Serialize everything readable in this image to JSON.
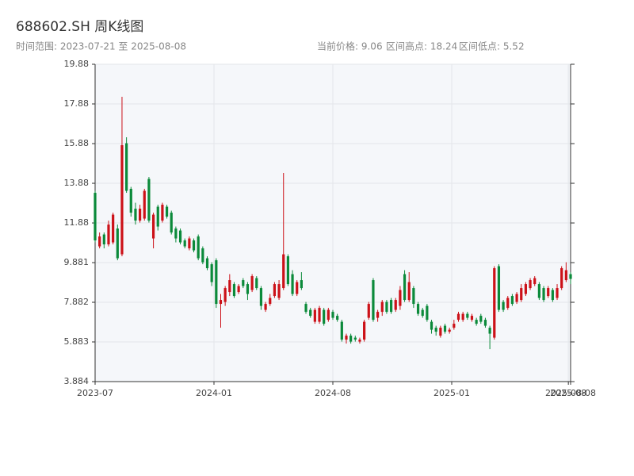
{
  "chart_data": {
    "type": "candlestick",
    "title": "688602.SH 周K线图",
    "subtitle": "时间范围: 2023-07-21 至 2025-08-08",
    "stats": [
      "当前价格: 9.06",
      "区间高点: 18.24",
      "区间低点: 5.52"
    ],
    "up_color": "#cc1118",
    "down_color": "#0b8a3a",
    "grid": true,
    "xlim": [
      0,
      106
    ],
    "xticks": [
      {
        "value": 0,
        "label": "2023-07"
      },
      {
        "value": 26.5,
        "label": "2024-01"
      },
      {
        "value": 53,
        "label": "2024-08"
      },
      {
        "value": 79.5,
        "label": "2025-01"
      },
      {
        "value": 105.5,
        "label": "2025-08"
      },
      {
        "value": 106,
        "label": "2025-08-08"
      }
    ],
    "ylim": [
      3.884,
      19.88
    ],
    "yticks": [
      3.884,
      5.883,
      7.882,
      9.881,
      11.88,
      13.88,
      15.88,
      17.88,
      19.88
    ],
    "open": [
      13.4,
      10.7,
      11.3,
      10.8,
      10.9,
      11.6,
      10.3,
      15.9,
      13.6,
      12.6,
      12.0,
      12.1,
      14.1,
      11.1,
      12.7,
      12.0,
      12.7,
      12.4,
      11.6,
      11.5,
      11.0,
      10.6,
      11.0,
      11.2,
      10.6,
      10.1,
      9.8,
      10.0,
      7.8,
      7.9,
      8.4,
      8.8,
      8.4,
      9.0,
      8.8,
      8.5,
      9.1,
      8.6,
      7.5,
      7.8,
      8.2,
      8.1,
      8.6,
      10.2,
      9.3,
      8.3,
      9.0,
      7.8,
      7.5,
      6.9,
      6.9,
      7.5,
      7.0,
      7.4,
      7.2,
      6.9,
      6.0,
      6.2,
      6.1,
      5.9,
      6.0,
      7.1,
      9.0,
      7.1,
      7.4,
      7.9,
      8.0,
      7.5,
      7.7,
      9.3,
      8.0,
      8.6,
      7.8,
      7.5,
      7.7,
      6.9,
      6.6,
      6.2,
      6.7,
      6.4,
      6.6,
      7.0,
      7.0,
      7.3,
      7.0,
      7.0,
      7.2,
      7.0,
      6.6,
      6.1,
      9.7,
      7.9,
      7.6,
      8.2,
      7.9,
      8.0,
      8.3,
      8.6,
      8.8,
      8.8,
      8.6,
      8.2,
      8.5,
      8.1,
      8.6,
      9.0,
      9.3
    ],
    "high": [
      13.5,
      11.4,
      11.4,
      12.0,
      12.4,
      11.8,
      18.24,
      16.2,
      13.7,
      12.9,
      12.8,
      13.6,
      14.2,
      12.4,
      12.8,
      12.9,
      12.8,
      12.5,
      11.7,
      11.6,
      11.1,
      11.2,
      11.1,
      11.3,
      10.7,
      10.2,
      9.9,
      10.1,
      8.3,
      8.7,
      9.3,
      8.9,
      8.8,
      9.1,
      8.9,
      9.3,
      9.2,
      8.7,
      7.9,
      8.3,
      8.9,
      9.0,
      14.4,
      10.3,
      9.5,
      9.0,
      9.4,
      7.9,
      7.6,
      7.6,
      7.7,
      7.6,
      7.6,
      7.5,
      7.3,
      7.0,
      6.3,
      6.3,
      6.2,
      6.1,
      7.0,
      7.9,
      9.1,
      7.5,
      8.0,
      8.0,
      8.1,
      8.1,
      8.7,
      9.5,
      9.4,
      8.7,
      7.9,
      7.6,
      7.8,
      7.0,
      6.7,
      6.7,
      6.8,
      6.6,
      7.0,
      7.4,
      7.4,
      7.4,
      7.3,
      7.1,
      7.3,
      7.1,
      6.7,
      9.7,
      9.8,
      8.0,
      8.2,
      8.3,
      8.4,
      8.8,
      8.9,
      9.1,
      9.2,
      8.9,
      8.7,
      8.7,
      8.6,
      8.8,
      9.7,
      9.9,
      9.4
    ],
    "low": [
      10.9,
      10.6,
      10.6,
      10.7,
      10.8,
      10.0,
      10.2,
      13.4,
      12.2,
      11.8,
      11.9,
      12.0,
      11.9,
      10.6,
      11.5,
      11.9,
      12.1,
      11.3,
      10.9,
      10.8,
      10.6,
      10.5,
      10.4,
      10.0,
      9.8,
      9.5,
      8.7,
      7.6,
      6.6,
      7.7,
      8.2,
      8.1,
      8.3,
      8.6,
      8.0,
      8.4,
      8.5,
      7.5,
      7.4,
      7.7,
      8.1,
      8.0,
      8.5,
      8.7,
      8.2,
      8.2,
      8.5,
      7.3,
      7.1,
      6.8,
      6.8,
      6.7,
      6.9,
      7.0,
      6.9,
      5.9,
      5.8,
      5.8,
      5.9,
      5.8,
      5.9,
      7.0,
      6.9,
      6.9,
      7.2,
      7.3,
      7.3,
      7.4,
      7.5,
      7.9,
      7.9,
      7.6,
      7.2,
      7.1,
      6.9,
      6.3,
      6.2,
      6.1,
      6.3,
      6.3,
      6.5,
      6.9,
      6.9,
      7.0,
      6.9,
      6.7,
      6.8,
      6.6,
      5.52,
      6.0,
      7.4,
      7.4,
      7.5,
      7.7,
      7.8,
      7.9,
      8.2,
      8.5,
      8.7,
      8.0,
      7.9,
      8.1,
      7.9,
      8.0,
      8.5,
      8.9,
      8.8
    ],
    "close": [
      11.0,
      11.2,
      10.8,
      11.8,
      12.3,
      10.1,
      15.8,
      13.5,
      12.4,
      12.0,
      12.6,
      13.5,
      12.0,
      12.3,
      11.7,
      12.8,
      12.2,
      11.4,
      11.1,
      10.9,
      10.7,
      11.1,
      10.5,
      10.1,
      9.9,
      9.6,
      8.9,
      7.8,
      8.0,
      8.6,
      9.0,
      8.2,
      8.7,
      8.7,
      8.3,
      9.2,
      8.6,
      7.7,
      7.8,
      8.1,
      8.8,
      8.8,
      10.3,
      8.8,
      8.3,
      8.9,
      8.6,
      7.4,
      7.2,
      7.5,
      7.6,
      6.8,
      7.5,
      7.1,
      7.0,
      6.0,
      6.2,
      5.9,
      6.0,
      6.0,
      6.9,
      7.8,
      7.0,
      7.4,
      7.9,
      7.4,
      7.4,
      8.0,
      8.5,
      8.0,
      8.9,
      7.8,
      7.3,
      7.2,
      7.0,
      6.5,
      6.4,
      6.6,
      6.4,
      6.5,
      6.8,
      7.3,
      7.3,
      7.1,
      7.2,
      6.8,
      6.9,
      6.7,
      6.3,
      9.6,
      7.5,
      7.5,
      8.1,
      7.8,
      8.3,
      8.6,
      8.8,
      9.0,
      9.1,
      8.1,
      8.0,
      8.6,
      8.0,
      8.6,
      9.6,
      9.5,
      9.06
    ]
  }
}
